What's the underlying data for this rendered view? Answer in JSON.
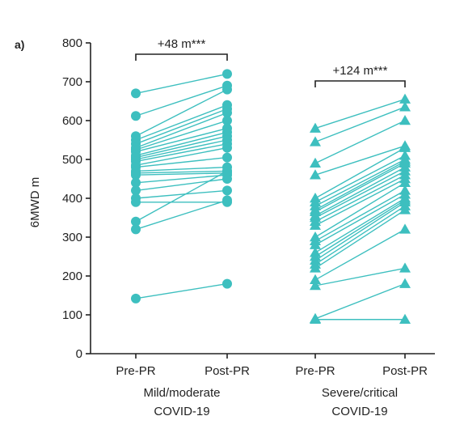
{
  "chart_data": {
    "type": "scatter",
    "panel_label": "a)",
    "ylabel": "6MWD m",
    "ylim": [
      0,
      800
    ],
    "yticks": [
      0,
      100,
      200,
      300,
      400,
      500,
      600,
      700,
      800
    ],
    "color": "#3dbfbf",
    "groups": [
      {
        "group_label_lines": [
          "Mild/moderate",
          "COVID-19"
        ],
        "categories": [
          "Pre-PR",
          "Post-PR"
        ],
        "marker": "circle",
        "annotation": "+48 m***",
        "pairs": [
          [
            670,
            720
          ],
          [
            612,
            690
          ],
          [
            560,
            680
          ],
          [
            550,
            640
          ],
          [
            540,
            630
          ],
          [
            530,
            620
          ],
          [
            525,
            600
          ],
          [
            520,
            580
          ],
          [
            510,
            570
          ],
          [
            505,
            560
          ],
          [
            500,
            550
          ],
          [
            495,
            540
          ],
          [
            485,
            530
          ],
          [
            480,
            505
          ],
          [
            470,
            480
          ],
          [
            465,
            470
          ],
          [
            460,
            465
          ],
          [
            440,
            460
          ],
          [
            420,
            450
          ],
          [
            400,
            420
          ],
          [
            390,
            390
          ],
          [
            340,
            470
          ],
          [
            320,
            395
          ],
          [
            142,
            180
          ]
        ]
      },
      {
        "group_label_lines": [
          "Severe/critical",
          "COVID-19"
        ],
        "categories": [
          "Pre-PR",
          "Post-PR"
        ],
        "marker": "triangle",
        "annotation": "+124 m***",
        "pairs": [
          [
            580,
            655
          ],
          [
            545,
            635
          ],
          [
            490,
            600
          ],
          [
            460,
            535
          ],
          [
            400,
            530
          ],
          [
            390,
            510
          ],
          [
            380,
            500
          ],
          [
            370,
            495
          ],
          [
            365,
            490
          ],
          [
            355,
            480
          ],
          [
            350,
            470
          ],
          [
            340,
            460
          ],
          [
            330,
            450
          ],
          [
            300,
            440
          ],
          [
            290,
            420
          ],
          [
            280,
            410
          ],
          [
            260,
            400
          ],
          [
            250,
            395
          ],
          [
            240,
            390
          ],
          [
            230,
            380
          ],
          [
            220,
            370
          ],
          [
            190,
            320
          ],
          [
            175,
            220
          ],
          [
            90,
            180
          ],
          [
            88,
            88
          ]
        ]
      }
    ]
  }
}
